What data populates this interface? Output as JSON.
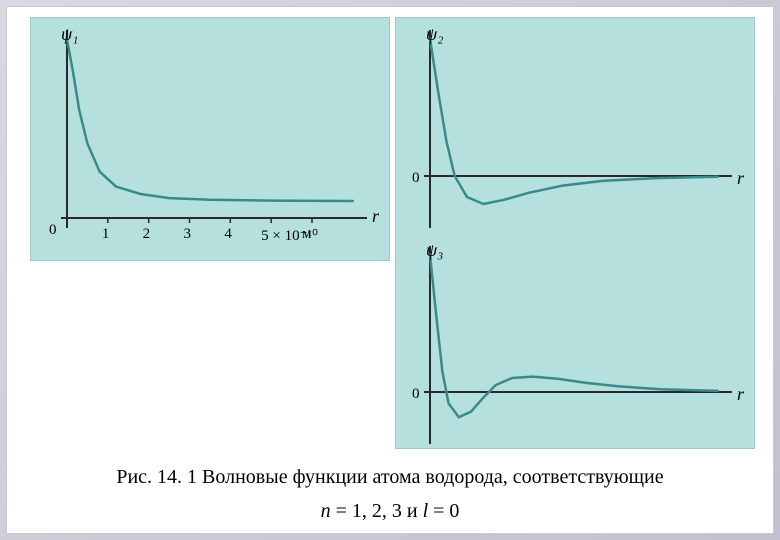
{
  "slide": {
    "background_gradient": [
      "#d8d8e0",
      "#c0c0d0"
    ],
    "panel_background": "#b5e0de",
    "axis_color": "#2a2a2a",
    "curve_color": "#3a8a88",
    "grid_color": "#a0c8c6"
  },
  "caption": {
    "line1_prefix": "Рис. 14. 1 Волновые функции атома водорода, соответствующие",
    "line2_n": "n",
    "line2_eq": " = 1, 2, 3 и ",
    "line2_l": "l",
    "line2_tail": " = 0"
  },
  "chart_psi1": {
    "type": "line",
    "y_axis_label": "ψ₁",
    "x_axis_label": "r",
    "origin_label": "0",
    "x_ticks": [
      "1",
      "2",
      "3",
      "4",
      "5 × 10⁻¹⁰",
      "м"
    ],
    "x_tick_positions": [
      1,
      2,
      3,
      4,
      5,
      6
    ],
    "xlim": [
      0,
      7.2
    ],
    "ylim": [
      -0.1,
      1.0
    ],
    "curve_points": [
      [
        0,
        0.98
      ],
      [
        0.15,
        0.78
      ],
      [
        0.3,
        0.55
      ],
      [
        0.5,
        0.35
      ],
      [
        0.8,
        0.18
      ],
      [
        1.2,
        0.09
      ],
      [
        1.8,
        0.045
      ],
      [
        2.5,
        0.02
      ],
      [
        3.5,
        0.01
      ],
      [
        5,
        0.005
      ],
      [
        7,
        0.003
      ]
    ],
    "axis_line_width": 2,
    "curve_line_width": 2.5,
    "label_fontsize": 18,
    "tick_fontsize": 15
  },
  "chart_psi2": {
    "type": "line",
    "y_axis_label": "ψ₂",
    "x_axis_label": "r",
    "origin_label": "0",
    "xlim": [
      0,
      7.2
    ],
    "ylim": [
      -0.3,
      1.0
    ],
    "zero_line_y": 0,
    "curve_points": [
      [
        0,
        0.98
      ],
      [
        0.2,
        0.6
      ],
      [
        0.4,
        0.25
      ],
      [
        0.6,
        0.0
      ],
      [
        0.9,
        -0.15
      ],
      [
        1.3,
        -0.2
      ],
      [
        1.8,
        -0.17
      ],
      [
        2.4,
        -0.12
      ],
      [
        3.2,
        -0.07
      ],
      [
        4.2,
        -0.035
      ],
      [
        5.5,
        -0.015
      ],
      [
        7,
        -0.005
      ]
    ],
    "axis_line_width": 2,
    "curve_line_width": 2.5,
    "label_fontsize": 18
  },
  "chart_psi3": {
    "type": "line",
    "y_axis_label": "ψ₃",
    "x_axis_label": "r",
    "origin_label": "0",
    "xlim": [
      0,
      7.2
    ],
    "ylim": [
      -0.3,
      1.0
    ],
    "zero_line_y": 0,
    "curve_points": [
      [
        0,
        0.98
      ],
      [
        0.15,
        0.55
      ],
      [
        0.3,
        0.15
      ],
      [
        0.45,
        -0.08
      ],
      [
        0.7,
        -0.18
      ],
      [
        1.0,
        -0.14
      ],
      [
        1.3,
        -0.04
      ],
      [
        1.6,
        0.05
      ],
      [
        2.0,
        0.1
      ],
      [
        2.5,
        0.11
      ],
      [
        3.1,
        0.095
      ],
      [
        3.8,
        0.065
      ],
      [
        4.6,
        0.04
      ],
      [
        5.6,
        0.02
      ],
      [
        7,
        0.008
      ]
    ],
    "axis_line_width": 2,
    "curve_line_width": 2.5,
    "label_fontsize": 18
  }
}
